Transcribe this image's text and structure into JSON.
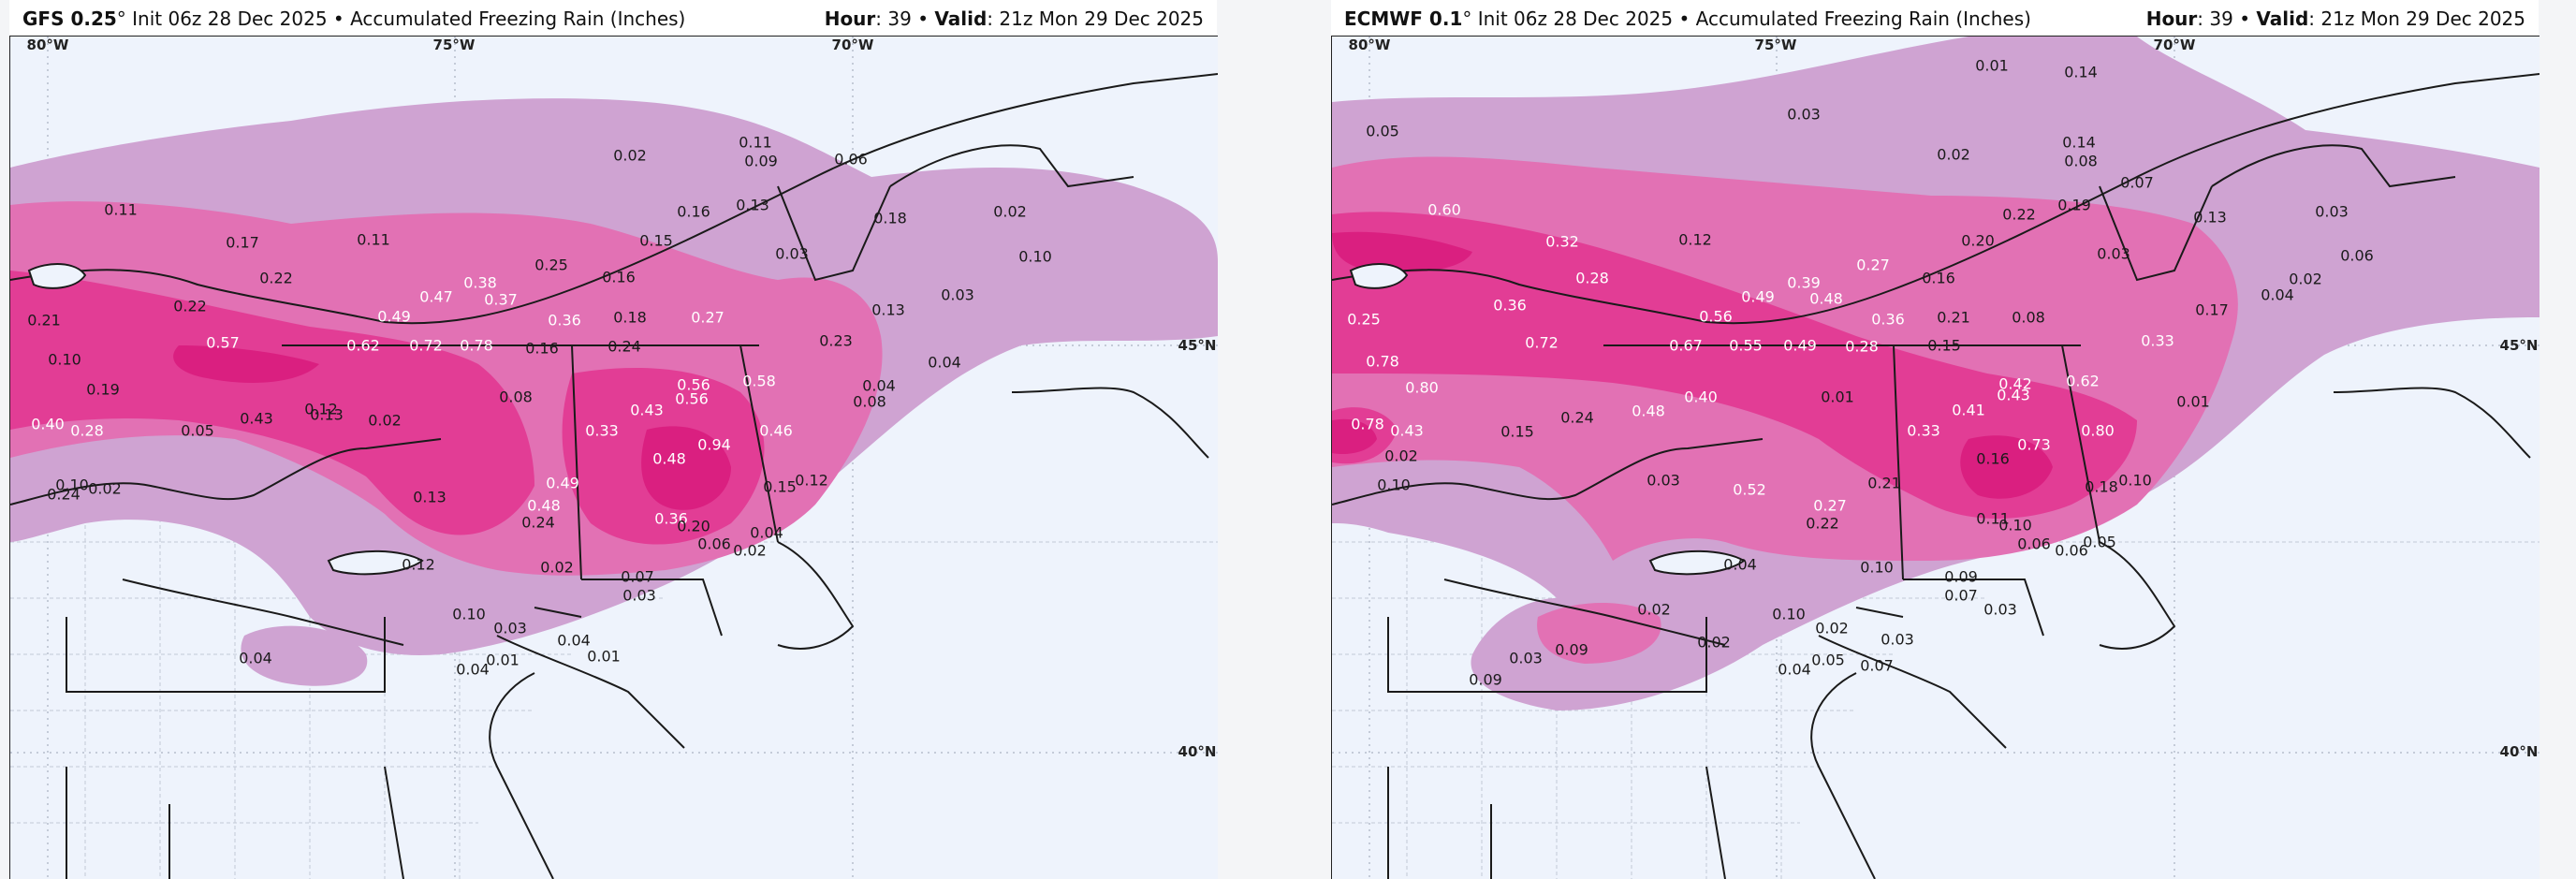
{
  "colors": {
    "page_bg": "#f4f5f7",
    "map_bg": "#eef3fc",
    "fz_light": "#cfa3d2",
    "fz_medium": "#e271b4",
    "fz_heavy": "#e23d95",
    "fz_peak": "#da1f80",
    "boundary": "#1a1a1a",
    "county": "#c3c9d6",
    "label_dark": "#1a1a1a",
    "label_light": "#ffffff"
  },
  "panels": [
    {
      "id": "gfs",
      "model": "GFS 0.25",
      "degree": "°",
      "init": "Init 06z 28 Dec 2025",
      "bullet": "•",
      "product": "Accumulated Freezing Rain (Inches)",
      "hour_label": "Hour",
      "hour": "39",
      "valid_label": "Valid",
      "valid": "21z Mon 29 Dec 2025",
      "coords": [
        {
          "text": "80°W"
        },
        {
          "text": "75°W"
        },
        {
          "text": "70°W"
        },
        {
          "text": "45°N"
        },
        {
          "text": "40°N"
        }
      ],
      "values": [
        {
          "text": "0.02"
        },
        {
          "text": "0.11"
        },
        {
          "text": "0.09"
        },
        {
          "text": "0.06"
        },
        {
          "text": "0.11"
        },
        {
          "text": "0.17"
        },
        {
          "text": "0.11"
        },
        {
          "text": "0.16"
        },
        {
          "text": "0.13"
        },
        {
          "text": "0.18"
        },
        {
          "text": "0.02"
        },
        {
          "text": "0.15"
        },
        {
          "text": "0.03"
        },
        {
          "text": "0.10"
        },
        {
          "text": "0.22"
        },
        {
          "text": "0.25"
        },
        {
          "text": "0.16"
        },
        {
          "text": "0.38"
        },
        {
          "text": "0.47"
        },
        {
          "text": "0.37"
        },
        {
          "text": "0.03"
        },
        {
          "text": "0.13"
        },
        {
          "text": "0.22"
        },
        {
          "text": "0.21"
        },
        {
          "text": "0.49"
        },
        {
          "text": "0.36"
        },
        {
          "text": "0.18"
        },
        {
          "text": "0.27"
        },
        {
          "text": "0.57"
        },
        {
          "text": "0.62"
        },
        {
          "text": "0.72"
        },
        {
          "text": "0.78"
        },
        {
          "text": "0.16"
        },
        {
          "text": "0.24"
        },
        {
          "text": "0.23"
        },
        {
          "text": "0.04"
        },
        {
          "text": "0.10"
        },
        {
          "text": "0.19"
        },
        {
          "text": "0.08"
        },
        {
          "text": "0.56"
        },
        {
          "text": "0.56"
        },
        {
          "text": "0.58"
        },
        {
          "text": "0.04"
        },
        {
          "text": "0.08"
        },
        {
          "text": "0.12"
        },
        {
          "text": "0.43"
        },
        {
          "text": "0.40"
        },
        {
          "text": "0.28"
        },
        {
          "text": "0.05"
        },
        {
          "text": "0.43"
        },
        {
          "text": "0.13"
        },
        {
          "text": "0.02"
        },
        {
          "text": "0.33"
        },
        {
          "text": "0.94"
        },
        {
          "text": "0.46"
        },
        {
          "text": "0.48"
        },
        {
          "text": "0.02"
        },
        {
          "text": "0.49"
        },
        {
          "text": "0.15"
        },
        {
          "text": "0.12"
        },
        {
          "text": "0.10"
        },
        {
          "text": "0.24"
        },
        {
          "text": "0.13"
        },
        {
          "text": "0.48"
        },
        {
          "text": "0.24"
        },
        {
          "text": "0.36"
        },
        {
          "text": "0.20"
        },
        {
          "text": "0.04"
        },
        {
          "text": "0.06"
        },
        {
          "text": "0.02"
        },
        {
          "text": "0.12"
        },
        {
          "text": "0.02"
        },
        {
          "text": "0.07"
        },
        {
          "text": "0.03"
        },
        {
          "text": "0.10"
        },
        {
          "text": "0.03"
        },
        {
          "text": "0.04"
        },
        {
          "text": "0.04"
        },
        {
          "text": "0.04"
        },
        {
          "text": "0.01"
        },
        {
          "text": "0.01"
        }
      ]
    },
    {
      "id": "ecmwf",
      "model": "ECMWF 0.1",
      "degree": "°",
      "init": "Init 06z 28 Dec 2025",
      "bullet": "•",
      "product": "Accumulated Freezing Rain (Inches)",
      "hour_label": "Hour",
      "hour": "39",
      "valid_label": "Valid",
      "valid": "21z Mon 29 Dec 2025",
      "coords": [
        {
          "text": "80°W"
        },
        {
          "text": "75°W"
        },
        {
          "text": "70°W"
        },
        {
          "text": "45°N"
        },
        {
          "text": "40°N"
        }
      ],
      "values": [
        {
          "text": "0.01"
        },
        {
          "text": "0.14"
        },
        {
          "text": "0.03"
        },
        {
          "text": "0.05"
        },
        {
          "text": "0.02"
        },
        {
          "text": "0.14"
        },
        {
          "text": "0.08"
        },
        {
          "text": "0.07"
        },
        {
          "text": "0.60"
        },
        {
          "text": "0.19"
        },
        {
          "text": "0.13"
        },
        {
          "text": "0.03"
        },
        {
          "text": "0.32"
        },
        {
          "text": "0.12"
        },
        {
          "text": "0.22"
        },
        {
          "text": "0.20"
        },
        {
          "text": "0.03"
        },
        {
          "text": "0.06"
        },
        {
          "text": "0.27"
        },
        {
          "text": "0.16"
        },
        {
          "text": "0.28"
        },
        {
          "text": "0.39"
        },
        {
          "text": "0.49"
        },
        {
          "text": "0.48"
        },
        {
          "text": "0.17"
        },
        {
          "text": "0.04"
        },
        {
          "text": "0.36"
        },
        {
          "text": "0.56"
        },
        {
          "text": "0.36"
        },
        {
          "text": "0.21"
        },
        {
          "text": "0.08"
        },
        {
          "text": "0.02"
        },
        {
          "text": "0.25"
        },
        {
          "text": "0.72"
        },
        {
          "text": "0.67"
        },
        {
          "text": "0.55"
        },
        {
          "text": "0.49"
        },
        {
          "text": "0.28"
        },
        {
          "text": "0.15"
        },
        {
          "text": "0.33"
        },
        {
          "text": "0.78"
        },
        {
          "text": "0.80"
        },
        {
          "text": "0.40"
        },
        {
          "text": "0.48"
        },
        {
          "text": "0.01"
        },
        {
          "text": "0.42"
        },
        {
          "text": "0.62"
        },
        {
          "text": "0.01"
        },
        {
          "text": "0.78"
        },
        {
          "text": "0.43"
        },
        {
          "text": "0.15"
        },
        {
          "text": "0.24"
        },
        {
          "text": "0.41"
        },
        {
          "text": "0.43"
        },
        {
          "text": "0.02"
        },
        {
          "text": "0.33"
        },
        {
          "text": "0.73"
        },
        {
          "text": "0.80"
        },
        {
          "text": "0.16"
        },
        {
          "text": "0.03"
        },
        {
          "text": "0.21"
        },
        {
          "text": "0.18"
        },
        {
          "text": "0.10"
        },
        {
          "text": "0.10"
        },
        {
          "text": "0.27"
        },
        {
          "text": "0.52"
        },
        {
          "text": "0.22"
        },
        {
          "text": "0.11"
        },
        {
          "text": "0.10"
        },
        {
          "text": "0.06"
        },
        {
          "text": "0.06"
        },
        {
          "text": "0.05"
        },
        {
          "text": "0.04"
        },
        {
          "text": "0.10"
        },
        {
          "text": "0.09"
        },
        {
          "text": "0.07"
        },
        {
          "text": "0.03"
        },
        {
          "text": "0.02"
        },
        {
          "text": "0.10"
        },
        {
          "text": "0.02"
        },
        {
          "text": "0.03"
        },
        {
          "text": "0.09"
        },
        {
          "text": "0.03"
        },
        {
          "text": "0.09"
        },
        {
          "text": "0.02"
        },
        {
          "text": "0.04"
        },
        {
          "text": "0.05"
        },
        {
          "text": "0.07"
        }
      ]
    }
  ]
}
